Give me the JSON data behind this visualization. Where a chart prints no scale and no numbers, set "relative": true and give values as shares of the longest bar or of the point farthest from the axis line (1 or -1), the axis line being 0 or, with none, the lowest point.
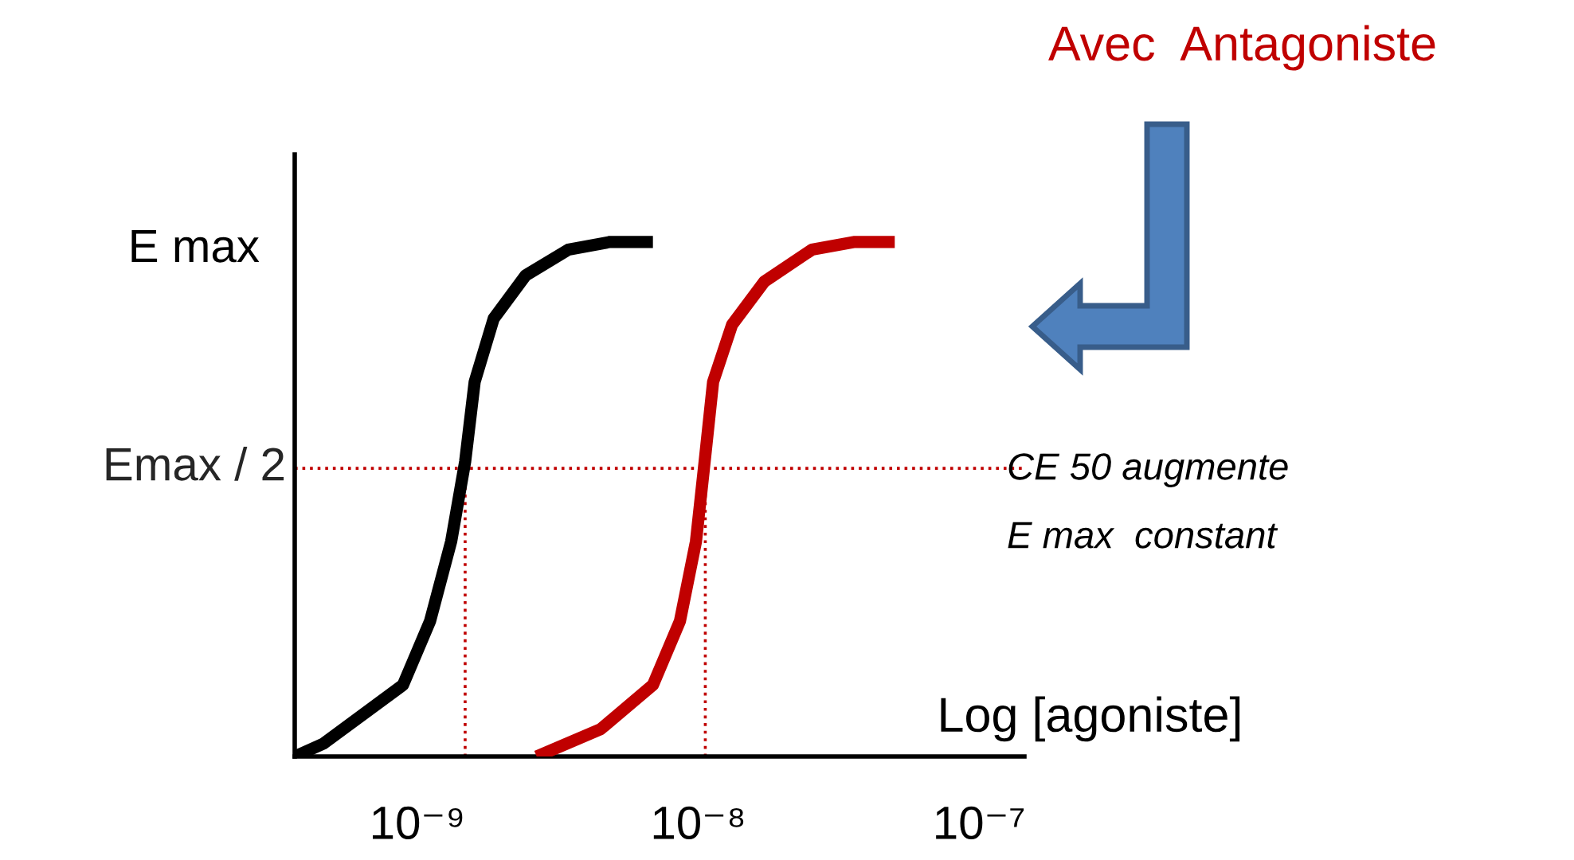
{
  "chart_data": {
    "type": "line",
    "xlabel": "Log [agoniste]",
    "log": "x",
    "relative": true,
    "xlim": [
      3.66e-10,
      1.45e-07
    ],
    "xticks": [
      {
        "value": 1e-09,
        "label": "10⁻⁹"
      },
      {
        "value": 1e-08,
        "label": "10⁻⁸"
      },
      {
        "value": 1e-07,
        "label": "10⁻⁷"
      }
    ],
    "grid": false,
    "legend": false,
    "marker": "none",
    "line_style": "solid",
    "series": [
      {
        "color": "#000000",
        "x": [
          3.66e-10,
          4.63e-10,
          8.89e-10,
          1.11e-09,
          1.32e-09,
          1.48e-09,
          1.6e-09,
          1.87e-09,
          2.43e-09,
          3.45e-09,
          4.85e-09,
          6.9e-09
        ],
        "values": [
          0,
          0.025,
          0.139,
          0.263,
          0.418,
          0.573,
          0.728,
          0.851,
          0.935,
          0.985,
          1.0,
          1.0
        ]
      },
      {
        "color": "#c00000",
        "x": [
          2.66e-09,
          4.49e-09,
          6.9e-09,
          8.61e-09,
          9.82e-09,
          1.05e-08,
          1.13e-08,
          1.32e-08,
          1.72e-08,
          2.54e-08,
          3.61e-08,
          5.01e-08
        ],
        "values": [
          0,
          0.053,
          0.139,
          0.263,
          0.418,
          0.564,
          0.728,
          0.839,
          0.923,
          0.985,
          1.0,
          1.0
        ]
      }
    ],
    "ref_lines": [
      {
        "axis": "y",
        "value": 0.56,
        "label": "Emax / 2",
        "color": "#c00000",
        "line_style": "dotted"
      },
      {
        "axis": "x",
        "value": 1.48e-09,
        "color": "#c00000",
        "line_style": "dotted"
      },
      {
        "axis": "x",
        "value": 1.06e-08,
        "color": "#c00000",
        "line_style": "dotted"
      }
    ],
    "annotations": [
      "E max",
      "Avec  Antagoniste",
      "CE 50 augmente",
      "E max  constant"
    ]
  }
}
